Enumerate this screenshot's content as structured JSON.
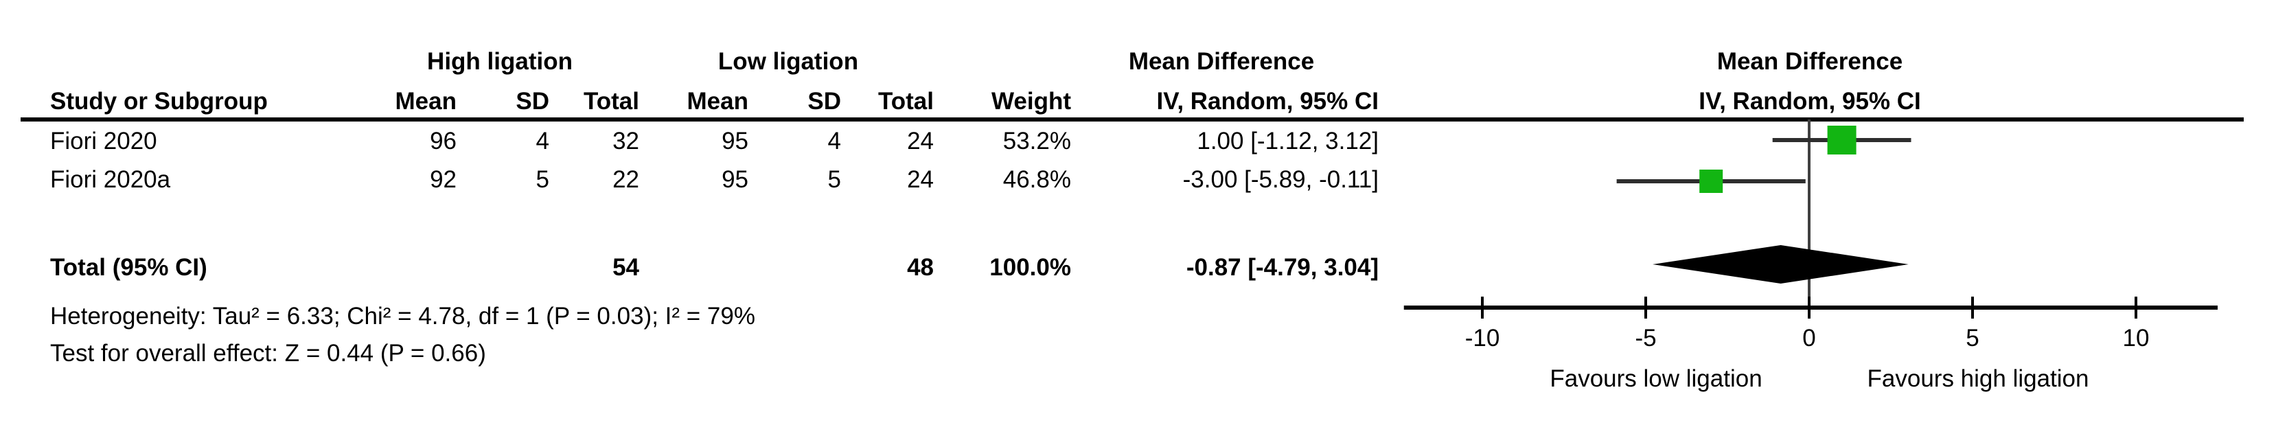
{
  "header": {
    "group_high": "High ligation",
    "group_low": "Low ligation",
    "effect_col_title": "Mean Difference",
    "effect_plot_title": "Mean Difference",
    "study": "Study or Subgroup",
    "mean": "Mean",
    "sd": "SD",
    "total": "Total",
    "weight": "Weight",
    "method_ci": "IV, Random, 95% CI"
  },
  "rows": [
    {
      "study": "Fiori 2020",
      "mean1": "96",
      "sd1": "4",
      "total1": "32",
      "mean2": "95",
      "sd2": "4",
      "total2": "24",
      "weight": "53.2%",
      "ci_text": "1.00 [-1.12, 3.12]"
    },
    {
      "study": "Fiori 2020a",
      "mean1": "92",
      "sd1": "5",
      "total1": "22",
      "mean2": "95",
      "sd2": "5",
      "total2": "24",
      "weight": "46.8%",
      "ci_text": "-3.00 [-5.89, -0.11]"
    }
  ],
  "total_row": {
    "label": "Total (95% CI)",
    "total1": "54",
    "total2": "48",
    "weight": "100.0%",
    "ci_text": "-0.87 [-4.79, 3.04]"
  },
  "footnotes": {
    "heterogeneity": "Heterogeneity: Tau² = 6.33; Chi² = 4.78, df = 1 (P = 0.03); I² = 79%",
    "overall_effect": "Test for overall effect: Z = 0.44 (P = 0.66)"
  },
  "chart_data": {
    "type": "forest",
    "title": "Mean Difference",
    "method": "IV, Random, 95% CI",
    "x_ticks": [
      -10,
      -5,
      0,
      5,
      10
    ],
    "xlim": [
      -12.4,
      12.5
    ],
    "zero_line": 0,
    "studies": [
      {
        "name": "Fiori 2020",
        "md": 1.0,
        "ci_low": -1.12,
        "ci_high": 3.12,
        "weight_pct": 53.2
      },
      {
        "name": "Fiori 2020a",
        "md": -3.0,
        "ci_low": -5.89,
        "ci_high": -0.11,
        "weight_pct": 46.8
      }
    ],
    "total": {
      "md": -0.87,
      "ci_low": -4.79,
      "ci_high": 3.04,
      "weight_pct": 100.0
    },
    "favours_left": "Favours low ligation",
    "favours_right": "Favours high ligation",
    "marker_color": "#12B512",
    "ci_line_color": "#2e2e2e",
    "axis_color": "#000000",
    "diamond_color": "#000000"
  }
}
